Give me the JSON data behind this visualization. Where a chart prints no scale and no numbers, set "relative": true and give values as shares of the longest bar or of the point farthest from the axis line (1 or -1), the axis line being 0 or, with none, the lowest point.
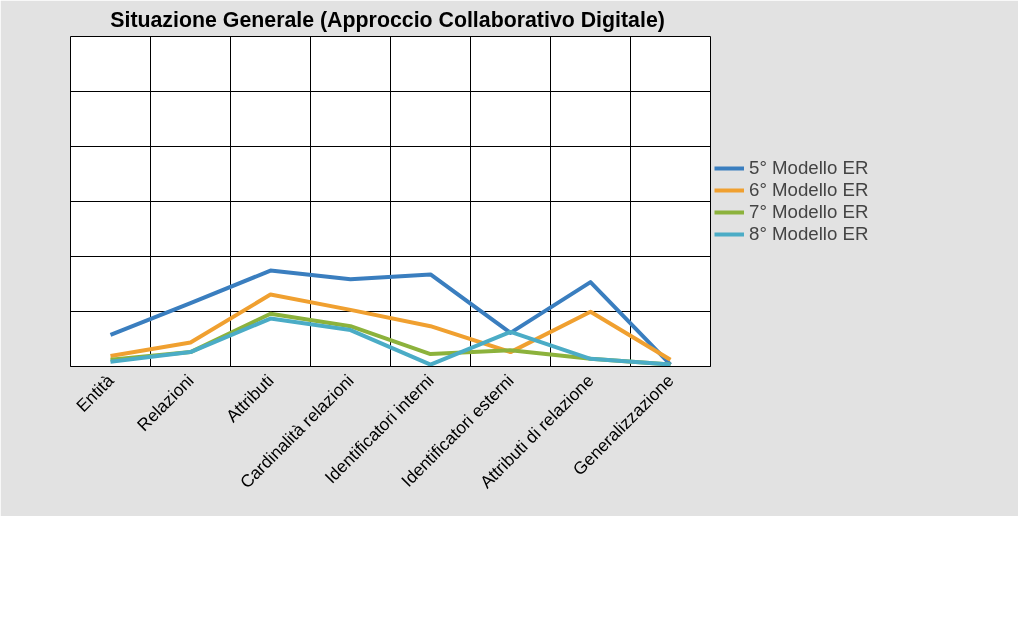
{
  "chart_data": {
    "type": "line",
    "title": "Situazione Generale (Approccio  Collaborativo Digitale)",
    "relative": true,
    "grid": true,
    "legend": "right",
    "marker": "none",
    "line_style": "solid",
    "categories": [
      "Entità",
      "Relazioni",
      "Attributi",
      "Cardinalità relazioni",
      "Identificatori interni",
      "Identificatori esterni",
      "Attributi di relazione",
      "Generalizzazione"
    ],
    "series": [
      {
        "name": "5° Modello ER",
        "color": "#3a7ebf",
        "values": [
          0.33,
          0.66,
          1,
          0.91,
          0.96,
          0.35,
          0.88,
          0.02
        ]
      },
      {
        "name": "6° Modello ER",
        "color": "#f0a030",
        "values": [
          0.11,
          0.25,
          0.75,
          0.59,
          0.42,
          0.15,
          0.57,
          0.07
        ]
      },
      {
        "name": "7° Modello ER",
        "color": "#8cb23c",
        "values": [
          0.07,
          0.15,
          0.55,
          0.42,
          0.13,
          0.17,
          0.08,
          0.02
        ]
      },
      {
        "name": "8° Modello ER",
        "color": "#4bacc6",
        "values": [
          0.05,
          0.15,
          0.5,
          0.38,
          0.02,
          0.36,
          0.08,
          0.02
        ]
      }
    ]
  }
}
